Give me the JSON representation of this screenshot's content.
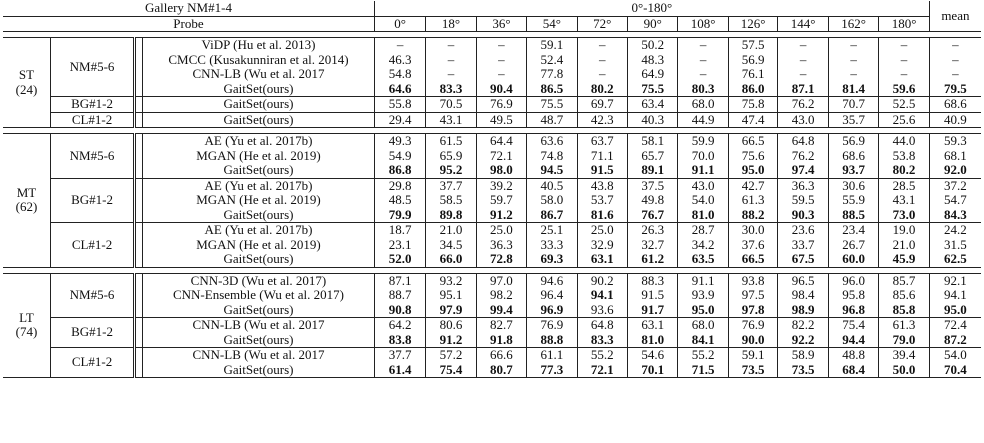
{
  "header": {
    "gallery_label": "Gallery NM#1-4",
    "angle_range": "0°-180°",
    "probe_label": "Probe",
    "mean_label": "mean",
    "angles": [
      "0°",
      "18°",
      "36°",
      "54°",
      "72°",
      "90°",
      "108°",
      "126°",
      "144°",
      "162°",
      "180°"
    ]
  },
  "groups": [
    {
      "name": "ST",
      "count": "(24)",
      "probes": [
        {
          "probe": "NM#5-6",
          "rows": [
            {
              "method": "ViDP (Hu et al. 2013)",
              "values": [
                "–",
                "–",
                "–",
                "59.1",
                "–",
                "50.2",
                "–",
                "57.5",
                "–",
                "–",
                "–",
                "–"
              ],
              "bold": []
            },
            {
              "method": "CMCC (Kusakunniran et al. 2014)",
              "values": [
                "46.3",
                "–",
                "–",
                "52.4",
                "–",
                "48.3",
                "–",
                "56.9",
                "–",
                "–",
                "–",
                "–"
              ],
              "bold": []
            },
            {
              "method": "CNN-LB (Wu et al. 2017",
              "values": [
                "54.8",
                "–",
                "–",
                "77.8",
                "–",
                "64.9",
                "–",
                "76.1",
                "–",
                "–",
                "–",
                "–"
              ],
              "bold": []
            },
            {
              "method": "GaitSet(ours)",
              "values": [
                "64.6",
                "83.3",
                "90.4",
                "86.5",
                "80.2",
                "75.5",
                "80.3",
                "86.0",
                "87.1",
                "81.4",
                "59.6",
                "79.5"
              ],
              "bold": [
                0,
                1,
                2,
                3,
                4,
                5,
                6,
                7,
                8,
                9,
                10,
                11
              ]
            }
          ]
        },
        {
          "probe": "BG#1-2",
          "rows": [
            {
              "method": "GaitSet(ours)",
              "values": [
                "55.8",
                "70.5",
                "76.9",
                "75.5",
                "69.7",
                "63.4",
                "68.0",
                "75.8",
                "76.2",
                "70.7",
                "52.5",
                "68.6"
              ],
              "bold": []
            }
          ]
        },
        {
          "probe": "CL#1-2",
          "rows": [
            {
              "method": "GaitSet(ours)",
              "values": [
                "29.4",
                "43.1",
                "49.5",
                "48.7",
                "42.3",
                "40.3",
                "44.9",
                "47.4",
                "43.0",
                "35.7",
                "25.6",
                "40.9"
              ],
              "bold": []
            }
          ]
        }
      ]
    },
    {
      "name": "MT",
      "count": "(62)",
      "probes": [
        {
          "probe": "NM#5-6",
          "rows": [
            {
              "method": "AE (Yu et al. 2017b)",
              "values": [
                "49.3",
                "61.5",
                "64.4",
                "63.6",
                "63.7",
                "58.1",
                "59.9",
                "66.5",
                "64.8",
                "56.9",
                "44.0",
                "59.3"
              ],
              "bold": []
            },
            {
              "method": "MGAN (He et al. 2019)",
              "values": [
                "54.9",
                "65.9",
                "72.1",
                "74.8",
                "71.1",
                "65.7",
                "70.0",
                "75.6",
                "76.2",
                "68.6",
                "53.8",
                "68.1"
              ],
              "bold": []
            },
            {
              "method": "GaitSet(ours)",
              "values": [
                "86.8",
                "95.2",
                "98.0",
                "94.5",
                "91.5",
                "89.1",
                "91.1",
                "95.0",
                "97.4",
                "93.7",
                "80.2",
                "92.0"
              ],
              "bold": [
                0,
                1,
                2,
                3,
                4,
                5,
                6,
                7,
                8,
                9,
                10,
                11
              ]
            }
          ]
        },
        {
          "probe": "BG#1-2",
          "rows": [
            {
              "method": "AE (Yu et al. 2017b)",
              "values": [
                "29.8",
                "37.7",
                "39.2",
                "40.5",
                "43.8",
                "37.5",
                "43.0",
                "42.7",
                "36.3",
                "30.6",
                "28.5",
                "37.2"
              ],
              "bold": []
            },
            {
              "method": "MGAN (He et al. 2019)",
              "values": [
                "48.5",
                "58.5",
                "59.7",
                "58.0",
                "53.7",
                "49.8",
                "54.0",
                "61.3",
                "59.5",
                "55.9",
                "43.1",
                "54.7"
              ],
              "bold": []
            },
            {
              "method": "GaitSet(ours)",
              "values": [
                "79.9",
                "89.8",
                "91.2",
                "86.7",
                "81.6",
                "76.7",
                "81.0",
                "88.2",
                "90.3",
                "88.5",
                "73.0",
                "84.3"
              ],
              "bold": [
                0,
                1,
                2,
                3,
                4,
                5,
                6,
                7,
                8,
                9,
                10,
                11
              ]
            }
          ]
        },
        {
          "probe": "CL#1-2",
          "rows": [
            {
              "method": "AE (Yu et al. 2017b)",
              "values": [
                "18.7",
                "21.0",
                "25.0",
                "25.1",
                "25.0",
                "26.3",
                "28.7",
                "30.0",
                "23.6",
                "23.4",
                "19.0",
                "24.2"
              ],
              "bold": []
            },
            {
              "method": "MGAN (He et al. 2019)",
              "values": [
                "23.1",
                "34.5",
                "36.3",
                "33.3",
                "32.9",
                "32.7",
                "34.2",
                "37.6",
                "33.7",
                "26.7",
                "21.0",
                "31.5"
              ],
              "bold": []
            },
            {
              "method": "GaitSet(ours)",
              "values": [
                "52.0",
                "66.0",
                "72.8",
                "69.3",
                "63.1",
                "61.2",
                "63.5",
                "66.5",
                "67.5",
                "60.0",
                "45.9",
                "62.5"
              ],
              "bold": [
                0,
                1,
                2,
                3,
                4,
                5,
                6,
                7,
                8,
                9,
                10,
                11
              ]
            }
          ]
        }
      ]
    },
    {
      "name": "LT",
      "count": "(74)",
      "probes": [
        {
          "probe": "NM#5-6",
          "rows": [
            {
              "method": "CNN-3D (Wu et al. 2017)",
              "values": [
                "87.1",
                "93.2",
                "97.0",
                "94.6",
                "90.2",
                "88.3",
                "91.1",
                "93.8",
                "96.5",
                "96.0",
                "85.7",
                "92.1"
              ],
              "bold": []
            },
            {
              "method": "CNN-Ensemble (Wu et al. 2017)",
              "values": [
                "88.7",
                "95.1",
                "98.2",
                "96.4",
                "94.1",
                "91.5",
                "93.9",
                "97.5",
                "98.4",
                "95.8",
                "85.6",
                "94.1"
              ],
              "bold": [
                4
              ]
            },
            {
              "method": "GaitSet(ours)",
              "values": [
                "90.8",
                "97.9",
                "99.4",
                "96.9",
                "93.6",
                "91.7",
                "95.0",
                "97.8",
                "98.9",
                "96.8",
                "85.8",
                "95.0"
              ],
              "bold": [
                0,
                1,
                2,
                3,
                5,
                6,
                7,
                8,
                9,
                10,
                11
              ]
            }
          ]
        },
        {
          "probe": "BG#1-2",
          "rows": [
            {
              "method": "CNN-LB (Wu et al. 2017",
              "values": [
                "64.2",
                "80.6",
                "82.7",
                "76.9",
                "64.8",
                "63.1",
                "68.0",
                "76.9",
                "82.2",
                "75.4",
                "61.3",
                "72.4"
              ],
              "bold": []
            },
            {
              "method": "GaitSet(ours)",
              "values": [
                "83.8",
                "91.2",
                "91.8",
                "88.8",
                "83.3",
                "81.0",
                "84.1",
                "90.0",
                "92.2",
                "94.4",
                "79.0",
                "87.2"
              ],
              "bold": [
                0,
                1,
                2,
                3,
                4,
                5,
                6,
                7,
                8,
                9,
                10,
                11
              ]
            }
          ]
        },
        {
          "probe": "CL#1-2",
          "rows": [
            {
              "method": "CNN-LB (Wu et al. 2017",
              "values": [
                "37.7",
                "57.2",
                "66.6",
                "61.1",
                "55.2",
                "54.6",
                "55.2",
                "59.1",
                "58.9",
                "48.8",
                "39.4",
                "54.0"
              ],
              "bold": []
            },
            {
              "method": "GaitSet(ours)",
              "values": [
                "61.4",
                "75.4",
                "80.7",
                "77.3",
                "72.1",
                "70.1",
                "71.5",
                "73.5",
                "73.5",
                "68.4",
                "50.0",
                "70.4"
              ],
              "bold": [
                0,
                1,
                2,
                3,
                4,
                5,
                6,
                7,
                8,
                9,
                10,
                11
              ]
            }
          ]
        }
      ]
    }
  ]
}
